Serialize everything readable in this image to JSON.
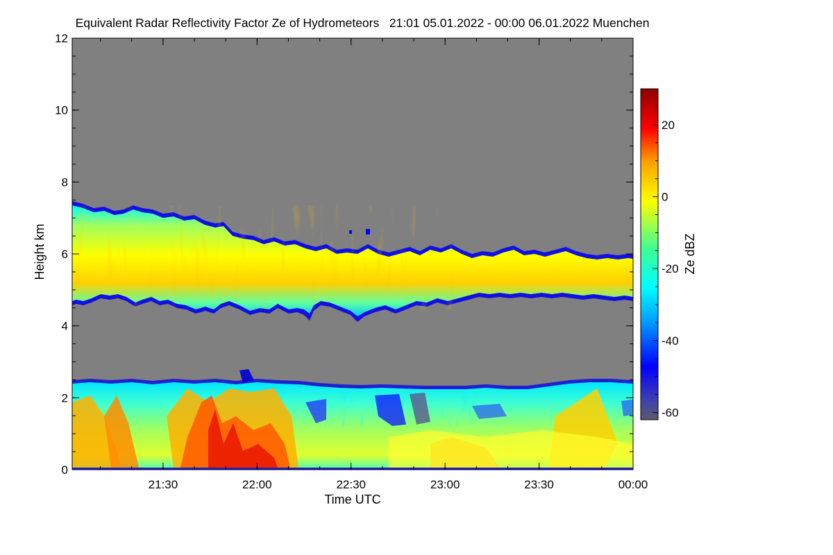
{
  "chart_data": {
    "type": "heatmap",
    "title": "Equivalent Radar Reflectivity Factor Ze of Hydrometeors   21:01 05.01.2022 - 00:00 06.01.2022 Muenchen",
    "xlabel": "Time UTC",
    "ylabel": "Height km",
    "x_tick_labels": [
      "21:30",
      "22:00",
      "22:30",
      "23:00",
      "23:30",
      "00:00"
    ],
    "xlim": [
      "21:01",
      "00:00"
    ],
    "y_tick_labels": [
      "0",
      "2",
      "4",
      "6",
      "8",
      "10",
      "12"
    ],
    "ylim": [
      0,
      12
    ],
    "grid": false,
    "colorbar": {
      "label": "Ze dBZ",
      "tick_labels": [
        "20",
        "0",
        "-20",
        "-40",
        "-60"
      ],
      "range": [
        -62,
        30
      ]
    },
    "background": "gray (no signal)",
    "layers": [
      {
        "name": "upper cloud layer",
        "time_range": [
          "21:01",
          "00:00"
        ],
        "base_km_start": 4.6,
        "top_km_start": 7.4,
        "base_km_end": 4.75,
        "top_km_end": 6.0,
        "typical_dBZ": -5
      },
      {
        "name": "lower precipitation layer",
        "time_range": [
          "21:01",
          "00:00"
        ],
        "base_km": 0,
        "top_km": 2.45,
        "typical_dBZ": -10
      }
    ]
  },
  "colors": {
    "background": "#808080",
    "colormap": [
      "#5a5a6e",
      "#0000ff",
      "#00c8ff",
      "#00ffb4",
      "#ffff00",
      "#ff9600",
      "#ff0000",
      "#8b0000"
    ]
  }
}
